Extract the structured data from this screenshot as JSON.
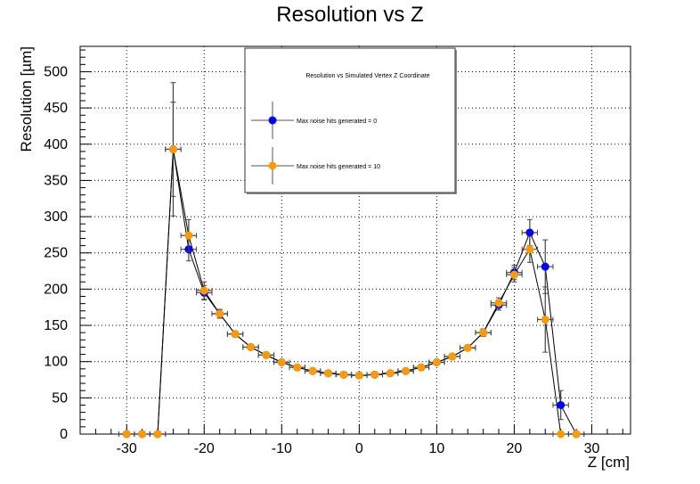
{
  "chart_data": {
    "type": "scatter",
    "title": "Resolution vs Z",
    "xlabel": "Z [cm]",
    "ylabel": "Resolution [µm]",
    "xlim": [
      -36,
      35
    ],
    "ylim": [
      0,
      535
    ],
    "xticks": [
      -30,
      -20,
      -10,
      0,
      10,
      20,
      30
    ],
    "yticks": [
      0,
      50,
      100,
      150,
      200,
      250,
      300,
      350,
      400,
      450,
      500
    ],
    "grid": true,
    "legend": {
      "title": "Resolution vs Simulated Vertex Z Coordinate",
      "placement": "top-center"
    },
    "series": [
      {
        "name": "Max noise hits generated = 0",
        "color": "#0000ff",
        "x": [
          -30,
          -28,
          -26,
          -24,
          -22,
          -20,
          -18,
          -16,
          -14,
          -12,
          -10,
          -8,
          -6,
          -4,
          -2,
          0,
          2,
          4,
          6,
          8,
          10,
          12,
          14,
          16,
          18,
          20,
          22,
          24,
          26,
          28
        ],
        "y": [
          0,
          0,
          0,
          393,
          255,
          195,
          166,
          138,
          120,
          109,
          99,
          92,
          87,
          84,
          82,
          81,
          82,
          84,
          87,
          92,
          99,
          107,
          119,
          140,
          178,
          223,
          278,
          231,
          40,
          0
        ],
        "yerr": [
          0,
          0,
          0,
          92,
          16,
          10,
          6,
          4,
          3,
          3,
          2,
          2,
          2,
          2,
          2,
          2,
          2,
          2,
          2,
          2,
          2,
          3,
          3,
          5,
          7,
          10,
          18,
          37,
          20,
          0
        ]
      },
      {
        "name": "Max noise hits generated = 10",
        "color": "#ff9900",
        "x": [
          -30,
          -28,
          -26,
          -24,
          -22,
          -20,
          -18,
          -16,
          -14,
          -12,
          -10,
          -8,
          -6,
          -4,
          -2,
          0,
          2,
          4,
          6,
          8,
          10,
          12,
          14,
          16,
          18,
          20,
          22,
          24,
          26,
          28
        ],
        "y": [
          0,
          0,
          0,
          393,
          274,
          198,
          166,
          138,
          120,
          109,
          99,
          92,
          87,
          84,
          82,
          81,
          82,
          84,
          87,
          92,
          99,
          107,
          119,
          140,
          181,
          220,
          255,
          158,
          0,
          0
        ],
        "yerr": [
          0,
          0,
          0,
          65,
          22,
          12,
          6,
          4,
          3,
          3,
          2,
          2,
          2,
          2,
          2,
          2,
          2,
          2,
          2,
          2,
          2,
          3,
          3,
          5,
          7,
          10,
          18,
          45,
          0,
          0
        ]
      }
    ]
  }
}
